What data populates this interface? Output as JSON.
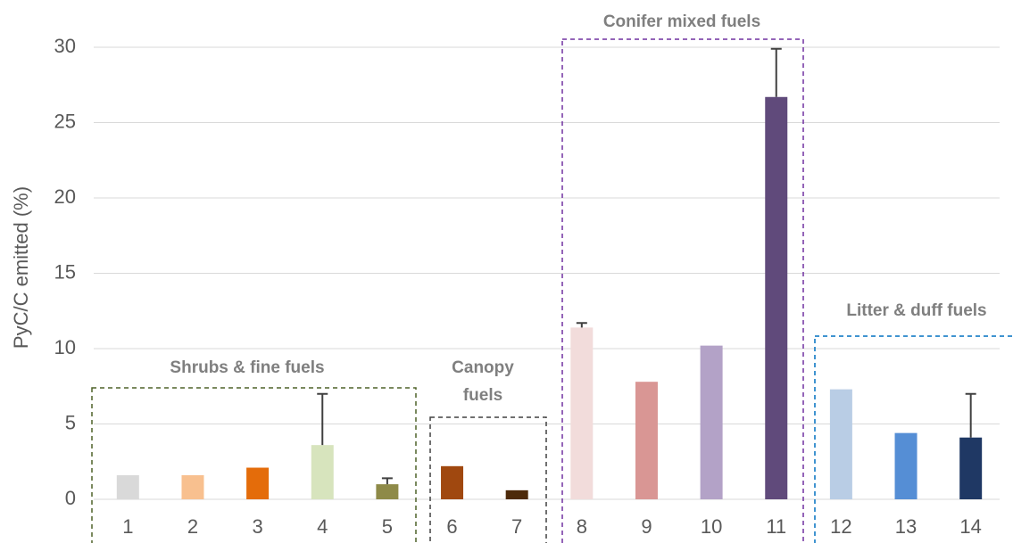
{
  "chart_data": {
    "type": "bar",
    "y_label": "PyC/C emitted (%)",
    "categories": [
      "1",
      "2",
      "3",
      "4",
      "5",
      "6",
      "7",
      "8",
      "9",
      "10",
      "11",
      "12",
      "13",
      "14"
    ],
    "values": [
      1.6,
      1.6,
      2.1,
      3.6,
      1.0,
      2.2,
      0.6,
      11.4,
      7.8,
      10.2,
      26.7,
      7.3,
      4.4,
      4.1
    ],
    "errors": [
      null,
      null,
      null,
      3.4,
      0.4,
      null,
      null,
      0.3,
      null,
      null,
      3.2,
      null,
      null,
      2.9
    ],
    "colors": [
      "#d9d9d9",
      "#f8c08f",
      "#e46c0a",
      "#d7e4bd",
      "#8e8a48",
      "#a0480f",
      "#4d2a0a",
      "#f2dcdb",
      "#d99694",
      "#b3a2c7",
      "#604a7b",
      "#b9cde5",
      "#558ed5",
      "#1f3864"
    ],
    "ylim": [
      0,
      30
    ],
    "yticks": [
      0,
      5,
      10,
      15,
      20,
      25,
      30
    ],
    "grid": true,
    "annotations": [
      "Shrubs & fine fuels",
      "Canopy fuels",
      "Conifer mixed fuels",
      "Litter & duff fuels"
    ]
  }
}
